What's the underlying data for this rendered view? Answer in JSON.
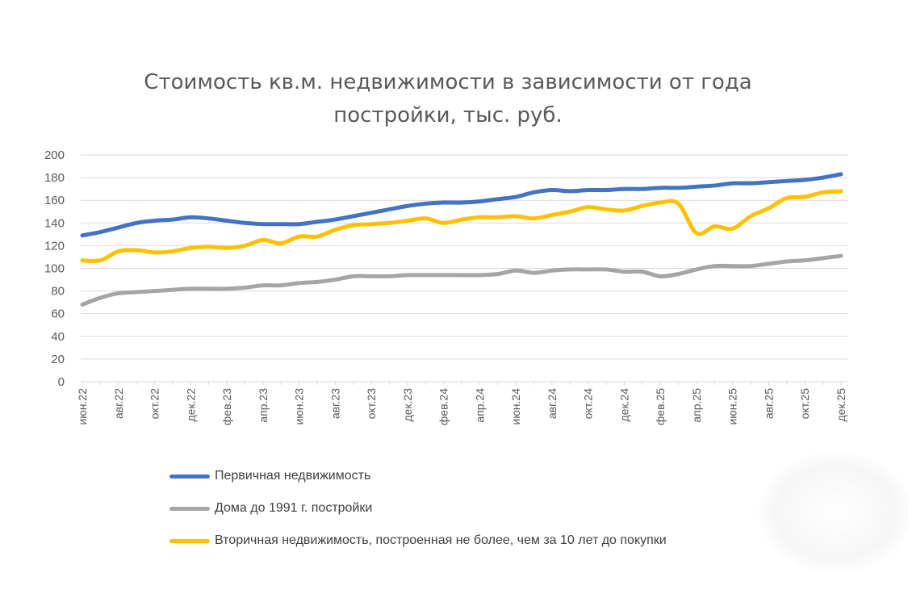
{
  "chart_data": {
    "type": "line",
    "title": "Стоимость кв.м. недвижимости в зависимости от года постройки, тыс. руб.",
    "xlabel": "",
    "ylabel": "",
    "ylim": [
      0,
      200
    ],
    "yticks": [
      "0",
      "20",
      "40",
      "60",
      "80",
      "100",
      "120",
      "140",
      "160",
      "180",
      "200"
    ],
    "grid": true,
    "legend_position": "bottom",
    "tick_labels": [
      "июн.22",
      "авг.22",
      "окт.22",
      "дек.22",
      "фев.23",
      "апр.23",
      "июн.23",
      "авг.23",
      "окт.23",
      "дек.23",
      "фев.24",
      "апр.24",
      "июн.24",
      "авг.24",
      "окт.24",
      "дек.24",
      "фев.25",
      "апр.25",
      "июн.25",
      "авг.25",
      "окт.25",
      "дек.25"
    ],
    "x": [
      "июн.22",
      "июл.22",
      "авг.22",
      "сен.22",
      "окт.22",
      "ноя.22",
      "дек.22",
      "янв.23",
      "фев.23",
      "мар.23",
      "апр.23",
      "май.23",
      "июн.23",
      "июл.23",
      "авг.23",
      "сен.23",
      "окт.23",
      "ноя.23",
      "дек.23",
      "янв.24",
      "фев.24",
      "мар.24",
      "апр.24",
      "май.24",
      "июн.24",
      "июл.24",
      "авг.24",
      "сен.24",
      "окт.24",
      "ноя.24",
      "дек.24",
      "янв.25",
      "фев.25",
      "мар.25",
      "апр.25",
      "май.25",
      "июн.25",
      "июл.25",
      "авг.25",
      "сен.25",
      "окт.25",
      "ноя.25",
      "дек.25"
    ],
    "series": [
      {
        "name": "Первичная недвижимость",
        "color": "#4472c4",
        "values": [
          129,
          132,
          136,
          140,
          142,
          143,
          145,
          144,
          142,
          140,
          139,
          139,
          139,
          141,
          143,
          146,
          149,
          152,
          155,
          157,
          158,
          158,
          159,
          161,
          163,
          167,
          169,
          168,
          169,
          169,
          170,
          170,
          171,
          171,
          172,
          173,
          175,
          175,
          176,
          177,
          178,
          180,
          183
        ]
      },
      {
        "name": "Дома до 1991 г. постройки",
        "color": "#a5a5a5",
        "values": [
          68,
          74,
          78,
          79,
          80,
          81,
          82,
          82,
          82,
          83,
          85,
          85,
          87,
          88,
          90,
          93,
          93,
          93,
          94,
          94,
          94,
          94,
          94,
          95,
          98,
          96,
          98,
          99,
          99,
          99,
          97,
          97,
          93,
          95,
          99,
          102,
          102,
          102,
          104,
          106,
          107,
          109,
          111
        ]
      },
      {
        "name": "Вторичная недвижимость, построенная не более, чем за 10 лет до покупки",
        "color": "#ffc000",
        "values": [
          107,
          107,
          115,
          116,
          114,
          115,
          118,
          119,
          118,
          120,
          125,
          122,
          128,
          128,
          134,
          138,
          139,
          140,
          142,
          144,
          140,
          143,
          145,
          145,
          146,
          144,
          147,
          150,
          154,
          152,
          151,
          155,
          158,
          157,
          131,
          137,
          135,
          146,
          153,
          162,
          163,
          167,
          168
        ]
      }
    ]
  }
}
